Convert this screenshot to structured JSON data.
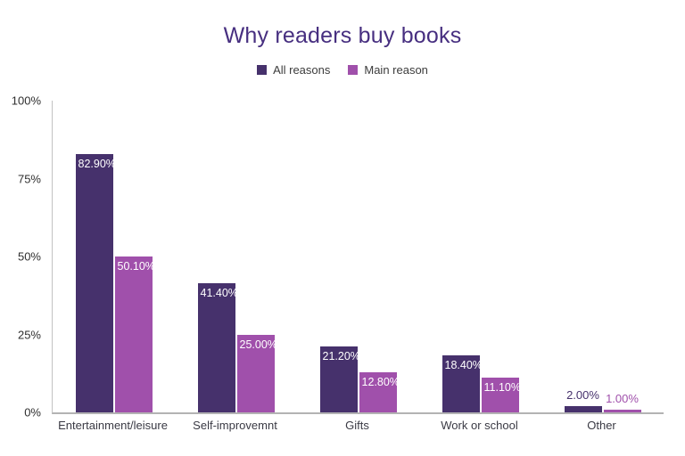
{
  "title": "Why readers buy books",
  "colors": {
    "title": "#472f80",
    "all_reasons": "#46316c",
    "main_reason": "#a050ab",
    "axis_line": "#b3b3b3",
    "tick_text": "#2f2f2f",
    "inside_label": "#ffffff"
  },
  "legend": {
    "items": [
      {
        "label": "All reasons",
        "color": "#46316c"
      },
      {
        "label": "Main reason",
        "color": "#a050ab"
      }
    ]
  },
  "chart_data": {
    "type": "bar",
    "title": "Why readers buy books",
    "categories": [
      "Entertainment/leisure",
      "Self-improvemnt",
      "Gifts",
      "Work or school",
      "Other"
    ],
    "series": [
      {
        "name": "All reasons",
        "color": "#46316c",
        "values": [
          82.9,
          41.4,
          21.2,
          18.4,
          2.0
        ],
        "labels": [
          "82.90%",
          "41.40%",
          "21.20%",
          "18.40%",
          "2.00%"
        ]
      },
      {
        "name": "Main reason",
        "color": "#a050ab",
        "values": [
          50.1,
          25.0,
          12.8,
          11.1,
          1.0
        ],
        "labels": [
          "50.10%",
          "25.00%",
          "12.80%",
          "11.10%",
          "1.00%"
        ]
      }
    ],
    "xlabel": "",
    "ylabel": "",
    "ylim": [
      0,
      100
    ],
    "yticks": [
      "0%",
      "25%",
      "50%",
      "75%",
      "100%"
    ],
    "grid": false,
    "legend_position": "top",
    "value_labels": "inside-top, white; shown above bar in series color when bar is too short"
  }
}
